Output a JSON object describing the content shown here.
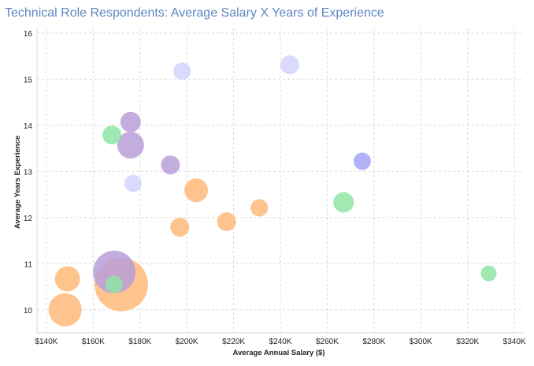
{
  "chart_data": {
    "type": "scatter",
    "title": "Technical Role Respondents: Average Salary X Years of Experience",
    "xlabel": "Average Annual Salary ($)",
    "ylabel": "Average Years Experience",
    "xlim": [
      136000,
      344000
    ],
    "ylim": [
      9.5,
      16.1
    ],
    "x_ticks": [
      140000,
      160000,
      180000,
      200000,
      220000,
      240000,
      260000,
      280000,
      300000,
      320000,
      340000
    ],
    "x_tick_labels": [
      "$140K",
      "$160K",
      "$180K",
      "$200K",
      "$220K",
      "$240K",
      "$260K",
      "$280K",
      "$300K",
      "$320K",
      "$340K"
    ],
    "y_ticks": [
      10,
      11,
      12,
      13,
      14,
      15,
      16
    ],
    "y_tick_labels": [
      "10",
      "11",
      "12",
      "13",
      "14",
      "15",
      "16"
    ],
    "grid": true,
    "points": [
      {
        "x": 172000,
        "y": 10.55,
        "size": 34,
        "color": "#ffb97a"
      },
      {
        "x": 169000,
        "y": 10.82,
        "size": 27,
        "color": "#b99fd9"
      },
      {
        "x": 148000,
        "y": 10.0,
        "size": 21,
        "color": "#ffb97a"
      },
      {
        "x": 149000,
        "y": 10.67,
        "size": 16,
        "color": "#ffb97a"
      },
      {
        "x": 169000,
        "y": 10.55,
        "size": 11,
        "color": "#8fe5a6"
      },
      {
        "x": 176000,
        "y": 13.57,
        "size": 17,
        "color": "#b99fd9"
      },
      {
        "x": 176000,
        "y": 14.07,
        "size": 13,
        "color": "#b99fd9"
      },
      {
        "x": 168000,
        "y": 13.79,
        "size": 12,
        "color": "#8fe5a6"
      },
      {
        "x": 177000,
        "y": 12.74,
        "size": 11,
        "color": "#d3d3ff"
      },
      {
        "x": 193000,
        "y": 13.14,
        "size": 12,
        "color": "#b99fd9"
      },
      {
        "x": 198000,
        "y": 15.17,
        "size": 11,
        "color": "#d3d3ff"
      },
      {
        "x": 244000,
        "y": 15.31,
        "size": 12,
        "color": "#d3d3ff"
      },
      {
        "x": 204000,
        "y": 12.59,
        "size": 15,
        "color": "#ffb97a"
      },
      {
        "x": 197000,
        "y": 11.79,
        "size": 12,
        "color": "#ffb97a"
      },
      {
        "x": 217000,
        "y": 11.91,
        "size": 12,
        "color": "#ffb97a"
      },
      {
        "x": 231000,
        "y": 12.21,
        "size": 11,
        "color": "#ffb97a"
      },
      {
        "x": 267000,
        "y": 12.33,
        "size": 13,
        "color": "#8fe5a6"
      },
      {
        "x": 275000,
        "y": 13.22,
        "size": 11,
        "color": "#a3a3f5"
      },
      {
        "x": 329000,
        "y": 10.79,
        "size": 10,
        "color": "#8fe5a6"
      }
    ]
  }
}
